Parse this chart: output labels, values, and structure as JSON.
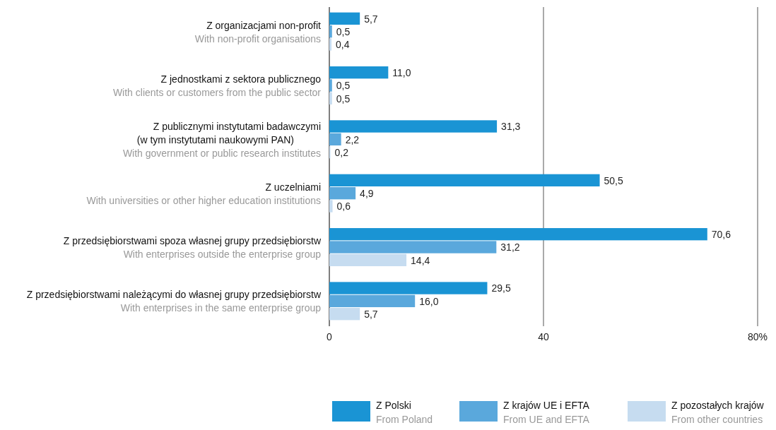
{
  "chart_data": {
    "type": "bar",
    "orientation": "horizontal",
    "categories": [
      "Z organizacjami non-profit\nWith non-profit organisations",
      "Z jednostkami z sektora publicznego\nWith clients or customers from the public sector",
      "Z publicznymi instytutami badawczymi\n(w tym instytutami naukowymi PAN)\nWith government or public research institutes",
      "Z uczelniami\nWith universities or other higher education institutions",
      "Z przedsiębiorstwami spoza własnej grupy przedsiębiorstw\nWith enterprises outside the enterprise group",
      "Z przedsiębiorstwami należącymi do własnej grupy przedsiębiorstw\nWith enterprises in the same enterprise group"
    ],
    "series": [
      {
        "name": "Z Polski\nFrom Poland",
        "color": "#1a94d4",
        "values": [
          5.7,
          11.0,
          31.3,
          50.5,
          70.6,
          29.5
        ],
        "value_labels": [
          "5,7",
          "11,0",
          "31,3",
          "50,5",
          "70,6",
          "29,5"
        ]
      },
      {
        "name": "Z krajów UE i EFTA\nFrom UE and EFTA",
        "color": "#5aa8dc",
        "values": [
          0.5,
          0.5,
          2.2,
          4.9,
          31.2,
          16.0
        ],
        "value_labels": [
          "0,5",
          "0,5",
          "2,2",
          "4,9",
          "31,2",
          "16,0"
        ]
      },
      {
        "name": "Z pozostałych krajów\nFrom other countries",
        "color": "#c6dcf0",
        "values": [
          0.4,
          0.5,
          0.2,
          0.6,
          14.4,
          5.7
        ],
        "value_labels": [
          "0,4",
          "0,5",
          "0,2",
          "0,6",
          "14,4",
          "5,7"
        ]
      }
    ],
    "xlim": [
      0,
      80
    ],
    "xticks": [
      0,
      40,
      {
        "value": 80,
        "label": "80%"
      }
    ],
    "grid": "x",
    "legend": "bottom"
  }
}
